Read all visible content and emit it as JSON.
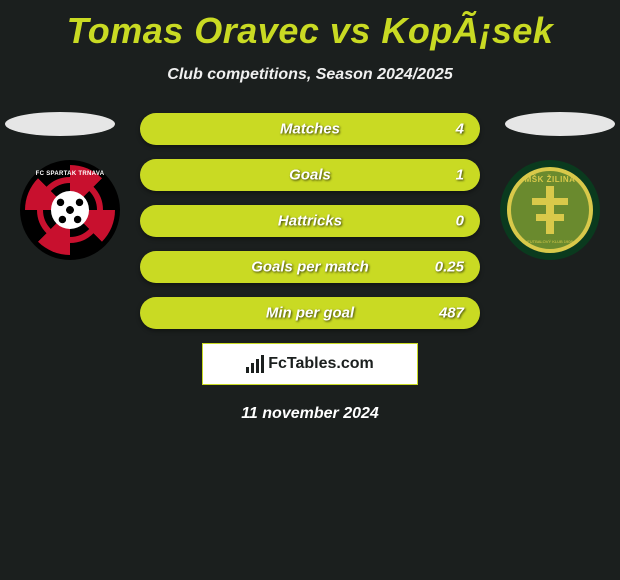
{
  "header": {
    "title": "Tomas Oravec vs KopÃ¡sek",
    "subtitle": "Club competitions, Season 2024/2025"
  },
  "badges": {
    "left": {
      "name": "FC Spartak Trnava",
      "arc_text": "FC SPARTAK TRNAVA",
      "colors": {
        "primary": "#c8102e",
        "secondary": "#000000",
        "ball": "#ffffff"
      }
    },
    "right": {
      "name": "MŠK Žilina",
      "arc_text": "MŠK ŽILINA",
      "bottom_text": "FUTBALOVÝ KLUB 1908",
      "colors": {
        "primary": "#6a8a2e",
        "accent": "#d9c94a",
        "outer": "#0a3a1e"
      }
    }
  },
  "stats": {
    "rows": [
      {
        "label": "Matches",
        "value": "4",
        "fill_pct": 100
      },
      {
        "label": "Goals",
        "value": "1",
        "fill_pct": 100
      },
      {
        "label": "Hattricks",
        "value": "0",
        "fill_pct": 100
      },
      {
        "label": "Goals per match",
        "value": "0.25",
        "fill_pct": 100
      },
      {
        "label": "Min per goal",
        "value": "487",
        "fill_pct": 100
      }
    ],
    "bar_bg": "#2d332e",
    "bar_fill": "#c9da23",
    "text_color": "#ffffff"
  },
  "brand": {
    "prefix": "Fc",
    "main": "Tables",
    "suffix": ".com"
  },
  "footer": {
    "date": "11 november 2024"
  },
  "theme": {
    "background": "#1b1f1e",
    "accent": "#c9da23",
    "title_fontsize": 36,
    "subtitle_fontsize": 16
  }
}
